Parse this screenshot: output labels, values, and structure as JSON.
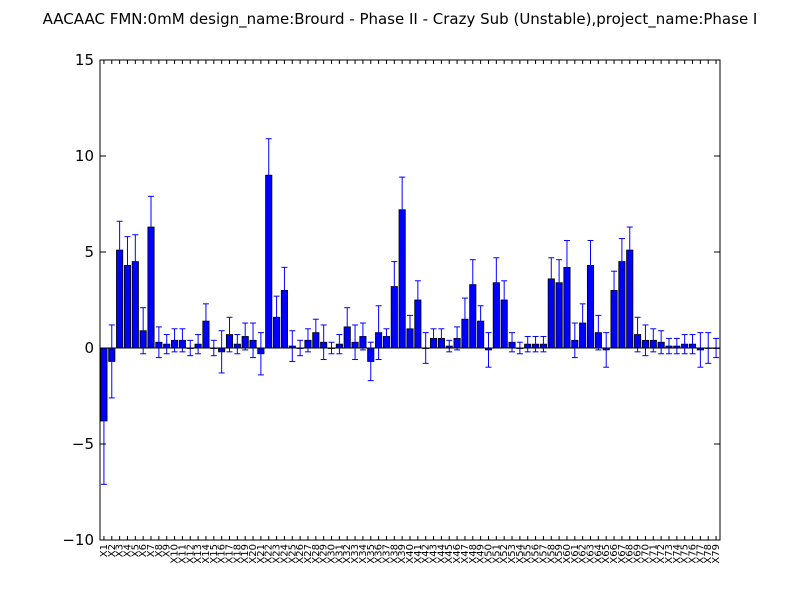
{
  "chart_data": {
    "type": "bar",
    "title": "AACAAC  FMN:0mM  design_name:Brourd - Phase II - Crazy Sub (Unstable),project_name:Phase I",
    "xlabel": "",
    "ylabel": "",
    "ylim": [
      -10,
      15
    ],
    "yticks": [
      "−10",
      "−5",
      "0",
      "5",
      "10",
      "15"
    ],
    "ytick_values": [
      -10,
      -5,
      0,
      5,
      10,
      15
    ],
    "grid": false,
    "bar_color": "#0000ff",
    "error_color": "#0000ff",
    "categories": [
      "X1",
      "X2",
      "X3",
      "X4",
      "X5",
      "X6",
      "X7",
      "X8",
      "X9",
      "X10",
      "X11",
      "X12",
      "X13",
      "X14",
      "X15",
      "X16",
      "X17",
      "X18",
      "X19",
      "X20",
      "X21",
      "X22",
      "X23",
      "X24",
      "X25",
      "X26",
      "X27",
      "X28",
      "X29",
      "X30",
      "X31",
      "X32",
      "X33",
      "X34",
      "X35",
      "X36",
      "X37",
      "X38",
      "X39",
      "X40",
      "X41",
      "X42",
      "X43",
      "X44",
      "X45",
      "X46",
      "X47",
      "X48",
      "X49",
      "X50",
      "X51",
      "X52",
      "X53",
      "X54",
      "X55",
      "X56",
      "X57",
      "X58",
      "X59",
      "X60",
      "X61",
      "X62",
      "X63",
      "X64",
      "X65",
      "X66",
      "X67",
      "X68",
      "X69",
      "X70",
      "X71",
      "X72",
      "X73",
      "X74",
      "X75",
      "X76",
      "X77",
      "X78",
      "X79"
    ],
    "values": [
      -3.8,
      -0.7,
      5.1,
      4.3,
      4.5,
      0.9,
      6.3,
      0.3,
      0.2,
      0.4,
      0.4,
      0.0,
      0.2,
      1.4,
      0.0,
      -0.2,
      0.7,
      0.2,
      0.6,
      0.4,
      -0.3,
      9.0,
      1.6,
      3.0,
      0.1,
      0.0,
      0.4,
      0.8,
      0.3,
      0.0,
      0.2,
      1.1,
      0.3,
      0.6,
      -0.7,
      0.8,
      0.6,
      3.2,
      7.2,
      1.0,
      2.5,
      0.0,
      0.5,
      0.5,
      0.1,
      0.5,
      1.5,
      3.3,
      1.4,
      -0.1,
      3.4,
      2.5,
      0.3,
      0.0,
      0.2,
      0.2,
      0.2,
      3.6,
      3.4,
      4.2,
      0.4,
      1.3,
      4.3,
      0.8,
      -0.1,
      3.0,
      4.5,
      5.1,
      0.7,
      0.4,
      0.4,
      0.3,
      0.1,
      0.1,
      0.2,
      0.2,
      -0.1,
      0.0,
      0.0
    ],
    "errors": [
      3.3,
      1.9,
      1.5,
      1.5,
      1.4,
      1.2,
      1.6,
      0.8,
      0.5,
      0.6,
      0.6,
      0.4,
      0.5,
      0.9,
      0.4,
      1.1,
      0.9,
      0.5,
      0.7,
      0.9,
      1.1,
      1.9,
      1.1,
      1.2,
      0.8,
      0.4,
      0.6,
      0.7,
      0.9,
      0.3,
      0.5,
      1.0,
      0.9,
      0.7,
      1.0,
      1.4,
      0.4,
      1.3,
      1.7,
      0.7,
      1.0,
      0.8,
      0.5,
      0.5,
      0.3,
      0.6,
      1.1,
      1.3,
      0.8,
      0.9,
      1.3,
      1.0,
      0.5,
      0.3,
      0.4,
      0.4,
      0.4,
      1.1,
      1.2,
      1.4,
      0.9,
      1.0,
      1.3,
      0.9,
      0.9,
      1.0,
      1.2,
      1.2,
      0.9,
      0.8,
      0.6,
      0.6,
      0.4,
      0.4,
      0.5,
      0.5,
      0.9,
      0.8,
      0.5
    ]
  }
}
